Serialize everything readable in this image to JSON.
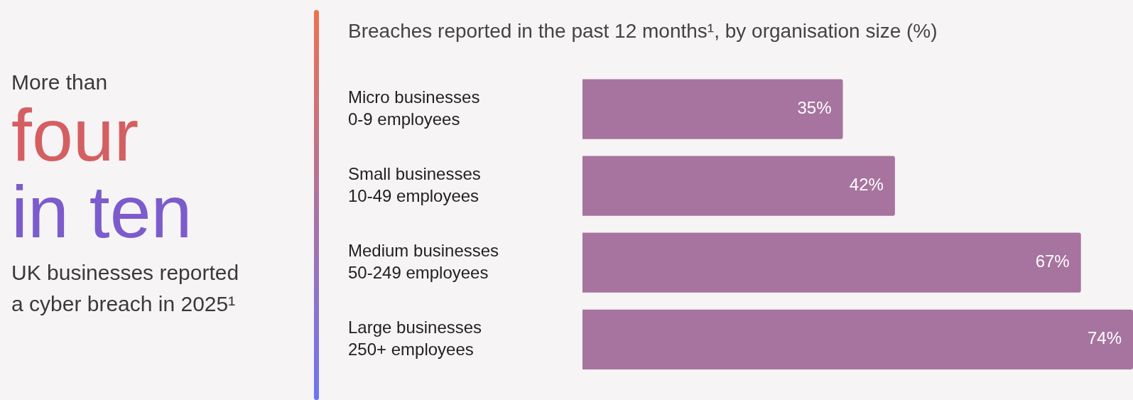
{
  "chart_data": [
    {
      "type": "other",
      "annotations": [
        "More than",
        "four",
        "in ten",
        "UK businesses reported a cyber breach in 2025¹"
      ],
      "colors": [
        "#3a3a3a",
        "#d45f62",
        "#7c5ccc",
        "#3a3a3a"
      ]
    },
    {
      "type": "bar",
      "orientation": "horizontal",
      "title": "Breaches reported in the past 12 months¹, by organisation size (%)",
      "categories": [
        "Micro businesses\n0-9 employees",
        "Small businesses\n10-49 employees",
        "Medium businesses\n50-249 employees",
        "Large businesses\n250+ employees"
      ],
      "values": [
        35,
        42,
        67,
        74
      ],
      "value_labels": [
        "35%",
        "42%",
        "67%",
        "74%"
      ],
      "color": "#a7739f",
      "xlim": [
        0,
        74
      ],
      "tick_labels": "y",
      "legend": false
    }
  ]
}
